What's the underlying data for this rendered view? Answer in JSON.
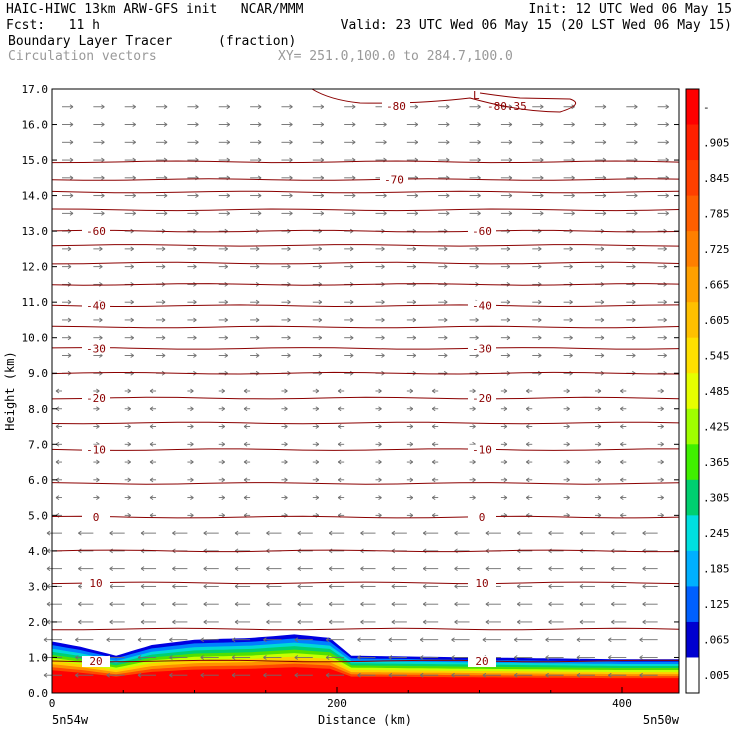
{
  "header": {
    "left_line1": "HAIC-HIWC 13km ARW-GFS init   NCAR/MMM",
    "left_line2": "Fcst:   11 h",
    "right_line1": "Init: 12 UTC Wed 06 May 15",
    "right_line2": "Valid: 23 UTC Wed 06 May 15 (20 LST Wed 06 May 15)",
    "field_name": "Boundary Layer Tracer",
    "field_units": "(fraction)",
    "vector_label": "Circulation vectors",
    "xy_label": "XY= 251.0,100.0 to 284.7,100.0"
  },
  "colors": {
    "contour": "#8b0000",
    "vector": "#6e6e6e",
    "grey_text": "#999999"
  },
  "chart_data": {
    "type": "heatmap",
    "xlabel": "Distance (km)",
    "ylabel": "Height (km)",
    "xlim": [
      0,
      440
    ],
    "ylim": [
      0,
      17
    ],
    "x_ticks": [
      "0",
      "200",
      "400"
    ],
    "y_ticks": [
      "0.0",
      "1.0",
      "2.0",
      "3.0",
      "4.0",
      "5.0",
      "6.0",
      "7.0",
      "8.0",
      "9.0",
      "10.0",
      "11.0",
      "12.0",
      "13.0",
      "14.0",
      "15.0",
      "16.0",
      "17.0"
    ],
    "left_endpoint": "5n54w",
    "right_endpoint": "5n50w",
    "colorbar": {
      "labels": [
        "-",
        ".905",
        ".845",
        ".785",
        ".725",
        ".665",
        ".605",
        ".545",
        ".485",
        ".425",
        ".365",
        ".305",
        ".245",
        ".185",
        ".125",
        ".065",
        ".005"
      ],
      "colors": [
        "#ff0000",
        "#ff2000",
        "#ff4000",
        "#ff5f00",
        "#ff7f00",
        "#ffa000",
        "#ffc000",
        "#ffe000",
        "#e6ff00",
        "#a0ff00",
        "#40f000",
        "#00d070",
        "#00e0e0",
        "#00b0ff",
        "#0060ff",
        "#0000d0",
        "#ffffff"
      ]
    },
    "temperature_contours": [
      {
        "label": "20",
        "height": 0.9
      },
      {
        "label": "",
        "height": 1.8
      },
      {
        "label": "10",
        "height": 3.1
      },
      {
        "label": "",
        "height": 4.0
      },
      {
        "label": "0",
        "height": 4.95
      },
      {
        "label": "",
        "height": 5.9
      },
      {
        "label": "-10",
        "height": 6.85
      },
      {
        "label": "",
        "height": 7.6
      },
      {
        "label": "-20",
        "height": 8.3
      },
      {
        "label": "",
        "height": 9.0
      },
      {
        "label": "-30",
        "height": 9.7
      },
      {
        "label": "",
        "height": 10.3
      },
      {
        "label": "-40",
        "height": 10.9
      },
      {
        "label": "",
        "height": 11.5
      },
      {
        "label": "",
        "height": 12.1
      },
      {
        "label": "",
        "height": 12.6
      },
      {
        "label": "-60",
        "height": 13.0
      },
      {
        "label": "",
        "height": 13.6
      },
      {
        "label": "",
        "height": 14.1
      },
      {
        "label": "-70",
        "height": 14.45
      },
      {
        "label": "",
        "height": 14.95
      },
      {
        "label": "-80",
        "height": 16.6
      }
    ],
    "min_marker": {
      "symbol": "L",
      "value": "-80.35"
    },
    "tracer_top_km": [
      {
        "x": 0,
        "top": 1.45
      },
      {
        "x": 20,
        "top": 1.3
      },
      {
        "x": 45,
        "top": 1.05
      },
      {
        "x": 70,
        "top": 1.35
      },
      {
        "x": 100,
        "top": 1.5
      },
      {
        "x": 140,
        "top": 1.55
      },
      {
        "x": 170,
        "top": 1.65
      },
      {
        "x": 195,
        "top": 1.55
      },
      {
        "x": 210,
        "top": 1.05
      },
      {
        "x": 300,
        "top": 1.0
      },
      {
        "x": 400,
        "top": 0.95
      },
      {
        "x": 440,
        "top": 0.95
      }
    ]
  }
}
